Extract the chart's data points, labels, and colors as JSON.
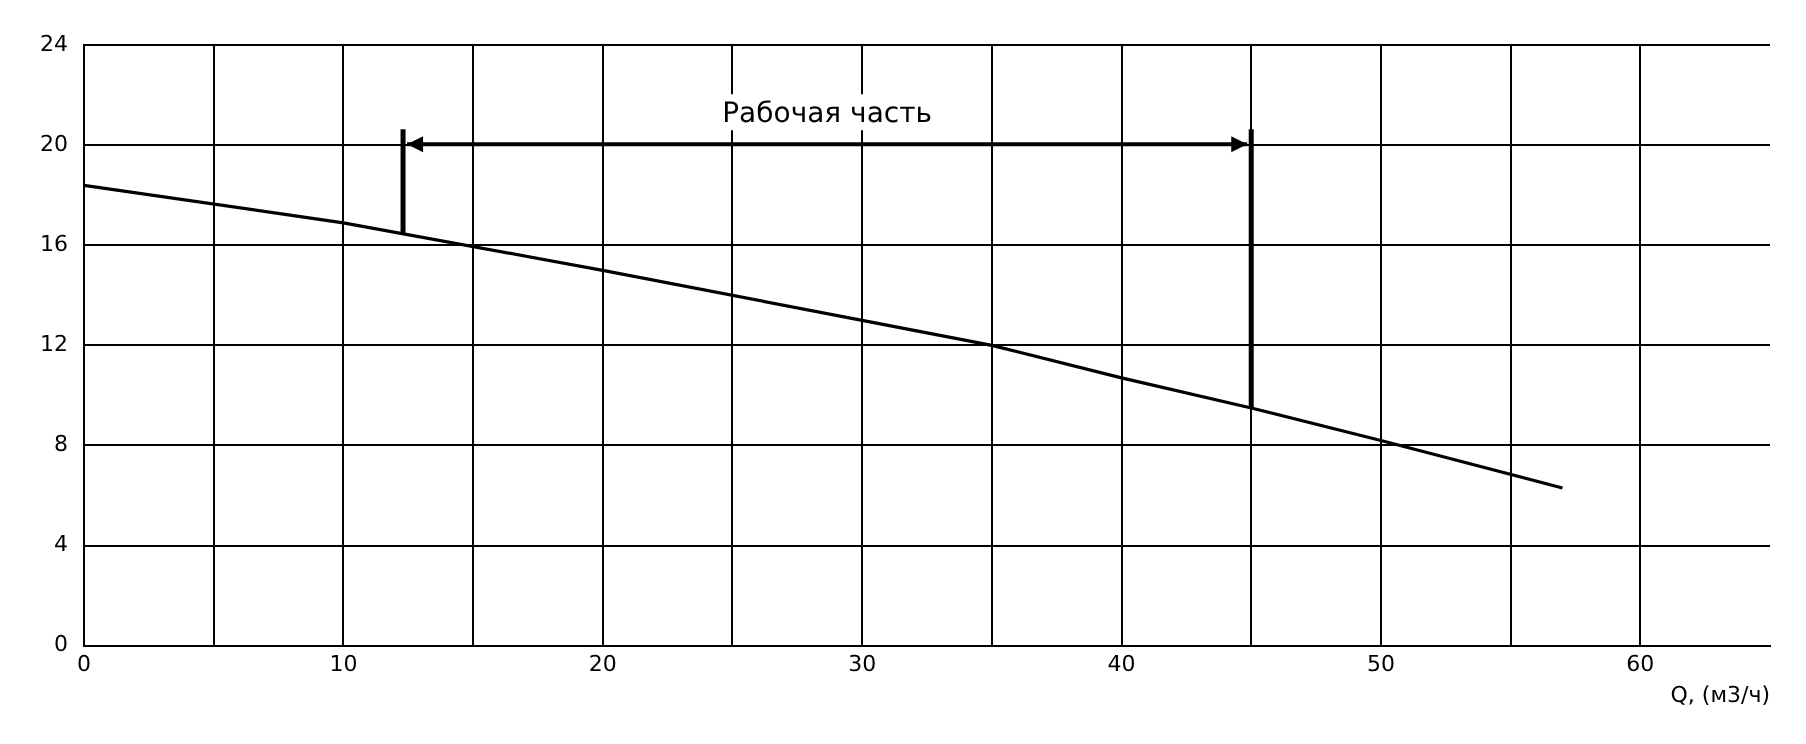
{
  "chart_data": {
    "type": "line",
    "xlabel": "Q, (м3/ч)",
    "series": [
      {
        "color": "#000000",
        "x": [
          0,
          10,
          20,
          30,
          35,
          40,
          45,
          50,
          57
        ],
        "values": [
          18.4,
          16.9,
          15.0,
          13.0,
          12.0,
          10.7,
          9.5,
          8.2,
          6.3
        ]
      }
    ],
    "xlim": [
      0,
      65
    ],
    "xticks": [
      0,
      {
        "value": 5,
        "label": null
      },
      10,
      {
        "value": 15,
        "label": null
      },
      20,
      {
        "value": 25,
        "label": null
      },
      30,
      {
        "value": 35,
        "label": null
      },
      40,
      {
        "value": 45,
        "label": null
      },
      50,
      {
        "value": 55,
        "label": null
      },
      60
    ],
    "ylim": [
      0,
      24
    ],
    "yticks": [
      0,
      4,
      8,
      12,
      16,
      20,
      24
    ],
    "ref_lines": [
      {
        "axis": "x",
        "value": 12.3,
        "color": "#000000"
      },
      {
        "axis": "x",
        "value": 45,
        "color": "#000000"
      }
    ],
    "annotations": [
      "Рабочая часть"
    ],
    "grid": true,
    "legend": false,
    "marker": "none",
    "line_style": "solid"
  }
}
